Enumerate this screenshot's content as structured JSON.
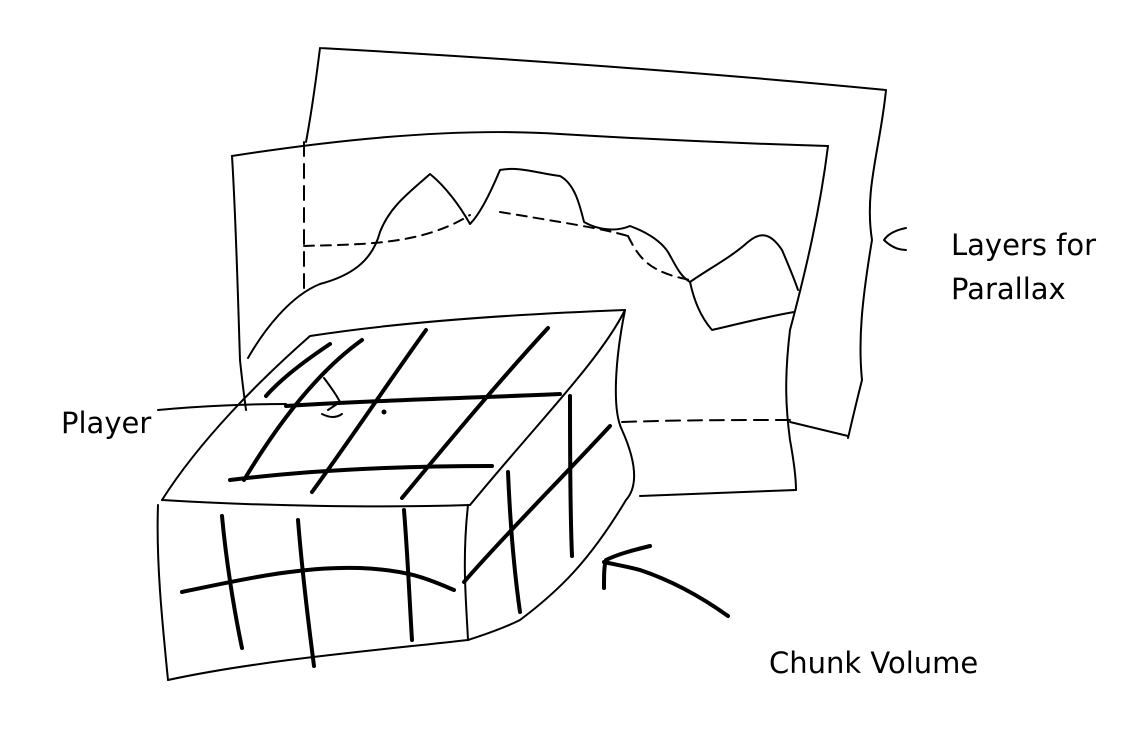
{
  "labels": {
    "player": "Player",
    "layers_line1": "Layers for",
    "layers_line2": "Parallax",
    "chunk_volume": "Chunk Volume"
  },
  "colors": {
    "ink": "#000000",
    "background": "#ffffff"
  }
}
